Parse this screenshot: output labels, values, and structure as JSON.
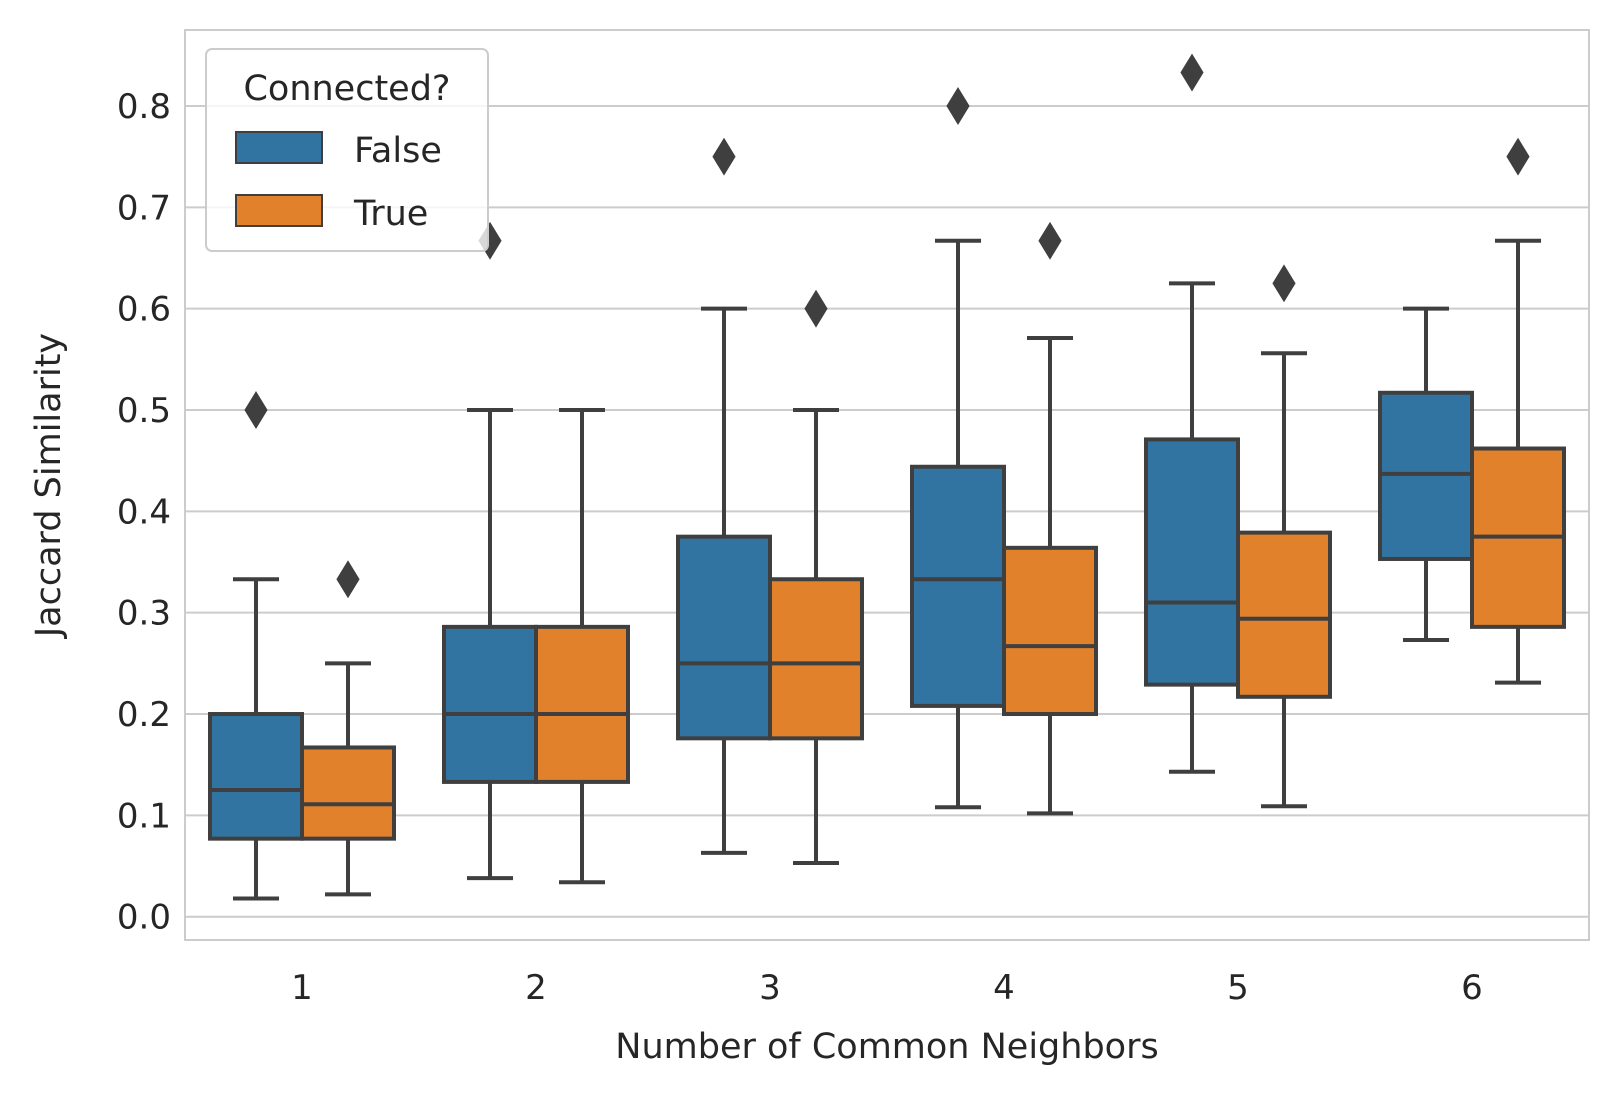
{
  "chart_data": {
    "type": "box",
    "title": "",
    "xlabel": "Number of Common Neighbors",
    "ylabel": "Jaccard Similarity",
    "categories": [
      "1",
      "2",
      "3",
      "4",
      "5",
      "6"
    ],
    "ylim": [
      -0.023,
      0.875
    ],
    "yticks": [
      0.0,
      0.1,
      0.2,
      0.3,
      0.4,
      0.5,
      0.6,
      0.7,
      0.8
    ],
    "ytick_labels": [
      "0.0",
      "0.1",
      "0.2",
      "0.3",
      "0.4",
      "0.5",
      "0.6",
      "0.7",
      "0.8"
    ],
    "grid": true,
    "legend": {
      "title": "Connected?",
      "placement": "top-left"
    },
    "series": [
      {
        "name": "False",
        "color": "#3274a1",
        "boxes": [
          {
            "whislo": 0.018,
            "q1": 0.077,
            "med": 0.125,
            "q3": 0.2,
            "whishi": 0.333,
            "fliers": [
              0.5
            ]
          },
          {
            "whislo": 0.038,
            "q1": 0.133,
            "med": 0.2,
            "q3": 0.286,
            "whishi": 0.5,
            "fliers": [
              0.667
            ]
          },
          {
            "whislo": 0.063,
            "q1": 0.176,
            "med": 0.25,
            "q3": 0.375,
            "whishi": 0.6,
            "fliers": [
              0.75
            ]
          },
          {
            "whislo": 0.108,
            "q1": 0.208,
            "med": 0.333,
            "q3": 0.444,
            "whishi": 0.667,
            "fliers": [
              0.8
            ]
          },
          {
            "whislo": 0.143,
            "q1": 0.229,
            "med": 0.31,
            "q3": 0.471,
            "whishi": 0.625,
            "fliers": [
              0.833
            ]
          },
          {
            "whislo": 0.273,
            "q1": 0.353,
            "med": 0.437,
            "q3": 0.517,
            "whishi": 0.6,
            "fliers": []
          }
        ]
      },
      {
        "name": "True",
        "color": "#e1812c",
        "boxes": [
          {
            "whislo": 0.022,
            "q1": 0.077,
            "med": 0.111,
            "q3": 0.167,
            "whishi": 0.25,
            "fliers": [
              0.333
            ]
          },
          {
            "whislo": 0.034,
            "q1": 0.133,
            "med": 0.2,
            "q3": 0.286,
            "whishi": 0.5,
            "fliers": []
          },
          {
            "whislo": 0.053,
            "q1": 0.176,
            "med": 0.25,
            "q3": 0.333,
            "whishi": 0.5,
            "fliers": [
              0.6
            ]
          },
          {
            "whislo": 0.102,
            "q1": 0.2,
            "med": 0.267,
            "q3": 0.364,
            "whishi": 0.571,
            "fliers": [
              0.667
            ]
          },
          {
            "whislo": 0.109,
            "q1": 0.217,
            "med": 0.294,
            "q3": 0.379,
            "whishi": 0.556,
            "fliers": [
              0.625
            ]
          },
          {
            "whislo": 0.231,
            "q1": 0.286,
            "med": 0.375,
            "q3": 0.462,
            "whishi": 0.667,
            "fliers": [
              0.75
            ]
          }
        ]
      }
    ]
  }
}
